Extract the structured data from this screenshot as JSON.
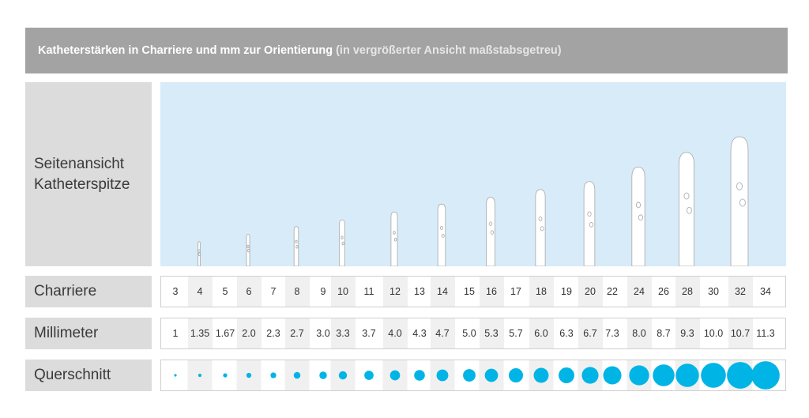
{
  "title": {
    "main": "Katheterstärken in Charriere und mm zur Orientierung",
    "note": "(in vergrößerter Ansicht maßstabsgetreu)"
  },
  "labels": {
    "side_line1": "Seitenansicht",
    "side_line2": "Katheterspitze",
    "charriere": "Charriere",
    "millimeter": "Millimeter",
    "querschnitt": "Querschnitt"
  },
  "charriere": [
    "3",
    "4",
    "5",
    "6",
    "7",
    "8",
    "9",
    "10",
    "11",
    "12",
    "13",
    "14",
    "15",
    "16",
    "17",
    "18",
    "19",
    "20",
    "22",
    "24",
    "26",
    "28",
    "30",
    "32",
    "34"
  ],
  "millimeter": [
    "1",
    "1.35",
    "1.67",
    "2.0",
    "2.3",
    "2.7",
    "3.0",
    "3.3",
    "3.7",
    "4.0",
    "4.3",
    "4.7",
    "5.0",
    "5.3",
    "5.7",
    "6.0",
    "6.3",
    "6.7",
    "7.3",
    "8.0",
    "8.7",
    "9.3",
    "10.0",
    "10.7",
    "11.3"
  ],
  "diameters_mm": [
    1,
    1.35,
    1.67,
    2.0,
    2.3,
    2.7,
    3.0,
    3.3,
    3.7,
    4.0,
    4.3,
    4.7,
    5.0,
    5.3,
    5.7,
    6.0,
    6.3,
    6.7,
    7.3,
    8.0,
    8.7,
    9.3,
    10.0,
    10.7,
    11.3
  ],
  "tips_shown_for_charriere": [
    "4",
    "6",
    "8",
    "10",
    "12",
    "14",
    "16",
    "18",
    "20",
    "24",
    "28",
    "32"
  ],
  "colors": {
    "dot": "#00b4e6",
    "panel": "#d7ebf9",
    "label_bg": "#dcdcdc",
    "title_bg": "#a3a3a3"
  }
}
